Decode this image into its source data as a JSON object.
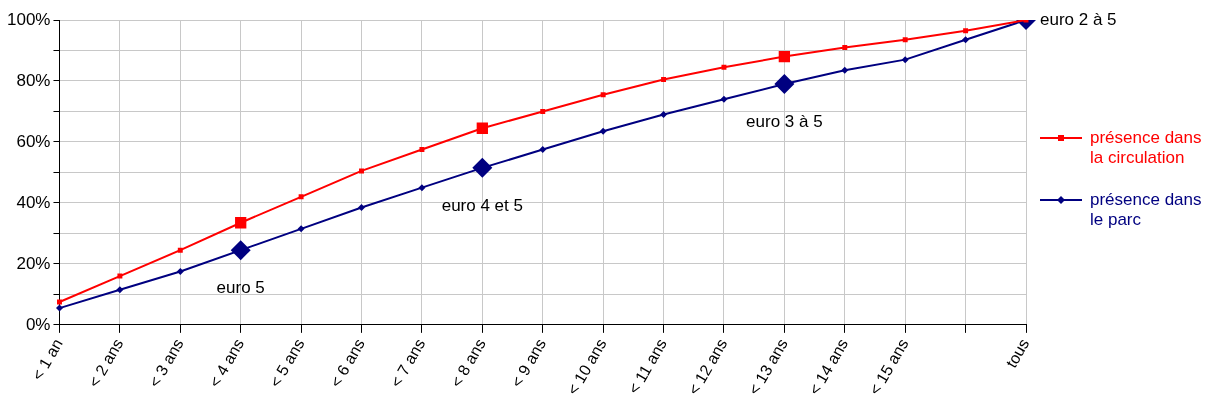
{
  "chart_data": {
    "type": "line",
    "categories": [
      "< 1 an",
      "< 2 ans",
      "< 3 ans",
      "< 4 ans",
      "< 5 ans",
      "< 6 ans",
      "< 7 ans",
      "< 8 ans",
      "< 9 ans",
      "< 10 ans",
      "< 11 ans",
      "< 12 ans",
      "< 13 ans",
      "< 14 ans",
      "< 15 ans",
      null,
      "tous"
    ],
    "series": [
      {
        "name": "présence dans la circulation",
        "color": "#ff0000",
        "marker": "square",
        "values": [
          7.5,
          16,
          24.5,
          33.5,
          42,
          50.5,
          57.5,
          64.5,
          70,
          75.5,
          80.5,
          84.5,
          88,
          91,
          93.5,
          96.5,
          100
        ]
      },
      {
        "name": "présence dans le parc",
        "color": "#000080",
        "marker": "diamond",
        "values": [
          5.5,
          11.5,
          17.5,
          24.5,
          31.5,
          38.5,
          45,
          51.5,
          57.5,
          63.5,
          69,
          74,
          79,
          83.5,
          87,
          93.5,
          100
        ]
      }
    ],
    "ylim": [
      0,
      100
    ],
    "yticks": [
      {
        "value": 0,
        "label": "0%"
      },
      {
        "value": 10,
        "label": null
      },
      {
        "value": 20,
        "label": "20%"
      },
      {
        "value": 30,
        "label": null
      },
      {
        "value": 40,
        "label": "40%"
      },
      {
        "value": 50,
        "label": null
      },
      {
        "value": 60,
        "label": "60%"
      },
      {
        "value": 70,
        "label": null
      },
      {
        "value": 80,
        "label": "80%"
      },
      {
        "value": 90,
        "label": null
      },
      {
        "value": 100,
        "label": "100%"
      }
    ],
    "annotations": [
      {
        "text": "euro 5",
        "x": "< 4 ans",
        "y": 24.5
      },
      {
        "text": "euro 4 et 5",
        "x": "< 8 ans",
        "y": 51.5
      },
      {
        "text": "euro 3 à 5",
        "x": "< 13 ans",
        "y": 79
      },
      {
        "text": "euro 2 à 5",
        "x": "tous",
        "y": 100
      }
    ],
    "grid": true,
    "legend": "right",
    "line_style": "solid"
  }
}
